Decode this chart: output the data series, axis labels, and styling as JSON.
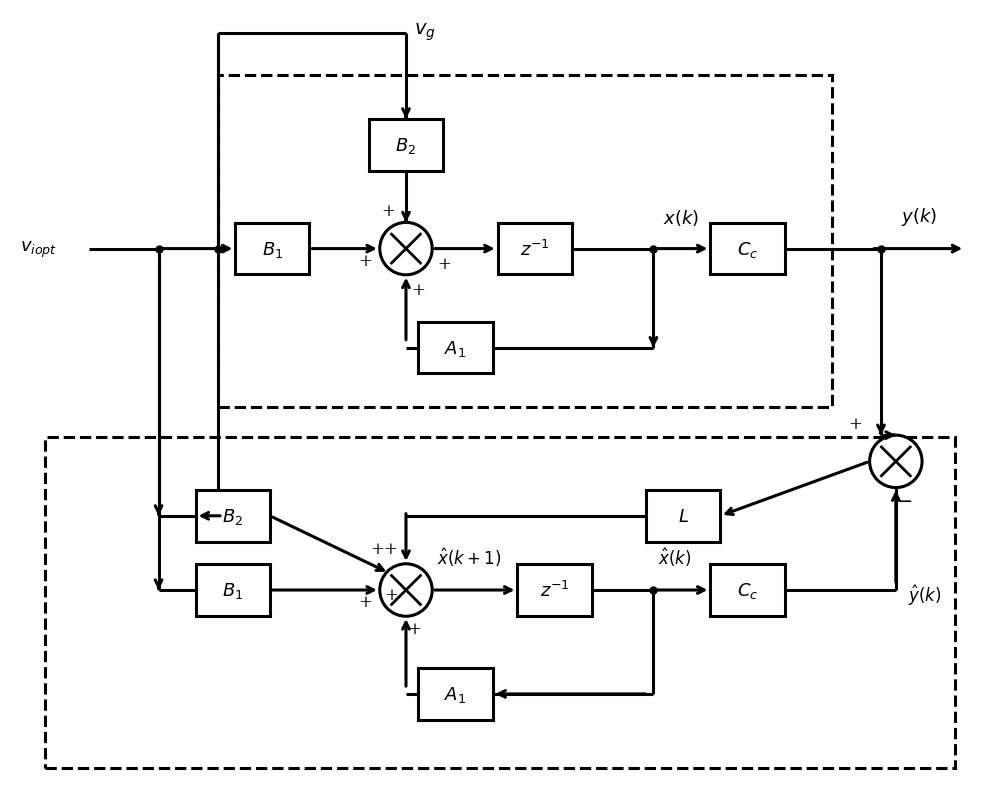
{
  "bg_color": "#ffffff",
  "lw": 2.2,
  "bw": 0.075,
  "bh": 0.065,
  "cr": 0.033,
  "fs_label": 13,
  "fs_block": 13,
  "fs_pm": 12,
  "arrow_style": "->",
  "arrow_lw": 2.2
}
